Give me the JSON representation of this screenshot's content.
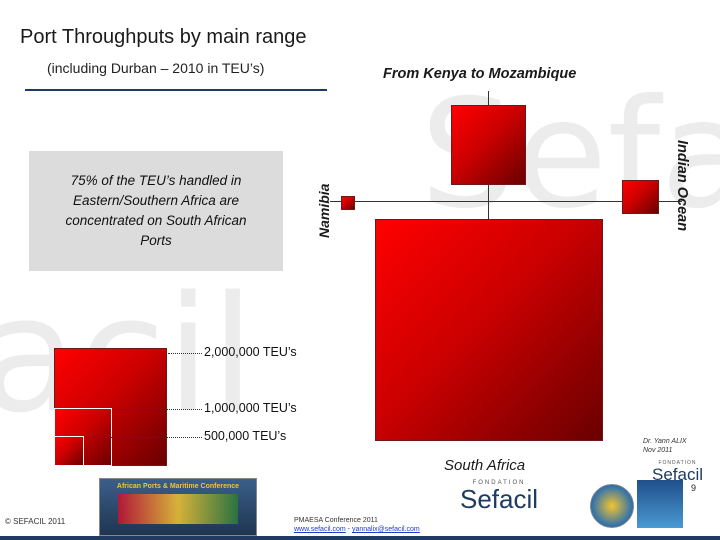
{
  "header": {
    "title": "Port Throughputs by main range",
    "subtitle": "(including Durban – 2010 in TEU’s)"
  },
  "info_box": {
    "text": "75% of the TEU’s handled in Eastern/Southern Africa are concentrated on South African Ports"
  },
  "map_labels": {
    "north": "From Kenya to Mozambique",
    "west": "Namibia",
    "east": "Indian Ocean",
    "south": "South Africa"
  },
  "legend": {
    "items": [
      {
        "label": "2,000,000 TEU’s",
        "value": 2000000
      },
      {
        "label": "1,000,000 TEU’s",
        "value": 1000000
      },
      {
        "label": "500,000 TEU’s",
        "value": 500000
      }
    ]
  },
  "credit": {
    "line1": "Dr. Yann ALIX",
    "line2": "Nov 2011"
  },
  "footer": {
    "copyright": "© SEFACIL 2011",
    "conference": "PMAESA Conference 2011",
    "link1": "www.sefacil.com",
    "sep": " - ",
    "link2": "yannalix@sefacil.com",
    "banner_title": "African Ports & Maritime Conference",
    "page_number": "9"
  },
  "logos": {
    "fondation": "FONDATION",
    "sefacil": "Sefacil"
  },
  "colors": {
    "accent": "#1f3b63",
    "square_red": "#e00000",
    "box_gray": "#dcdcdc"
  }
}
